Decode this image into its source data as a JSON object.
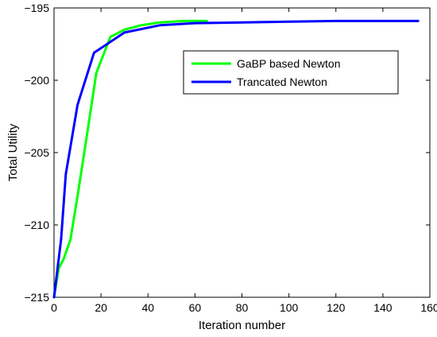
{
  "chart_data": {
    "type": "line",
    "xlabel": "Iteration number",
    "ylabel": "Total Utility",
    "xlim": [
      0,
      160
    ],
    "ylim": [
      -215,
      -195
    ],
    "xticks": [
      0,
      20,
      40,
      60,
      80,
      100,
      120,
      140,
      160
    ],
    "yticks": [
      -215,
      -210,
      -205,
      -200,
      -195
    ],
    "grid": false,
    "legend_position": "top-right",
    "series": [
      {
        "name": "GaBP based Newton",
        "color": "#00ff00",
        "x": [
          0,
          2,
          4,
          7,
          10,
          14,
          18,
          24,
          30,
          37,
          45,
          55,
          65
        ],
        "y": [
          -215,
          -213,
          -212.4,
          -211,
          -208,
          -203.8,
          -199.5,
          -197,
          -196.5,
          -196.2,
          -196.0,
          -195.9,
          -195.9
        ]
      },
      {
        "name": "Trancated Newton",
        "color": "#0000ff",
        "x": [
          0,
          3,
          5,
          10,
          17,
          30,
          45,
          60,
          80,
          100,
          120,
          140,
          155
        ],
        "y": [
          -215,
          -211,
          -206.5,
          -201.7,
          -198.1,
          -196.7,
          -196.2,
          -196.05,
          -196.0,
          -195.95,
          -195.9,
          -195.9,
          -195.9
        ]
      }
    ]
  }
}
